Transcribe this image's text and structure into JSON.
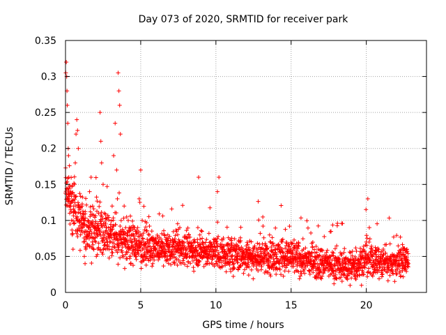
{
  "chart_data": {
    "type": "scatter",
    "title": "Day 073 of 2020, SRMTID for receiver park",
    "xlabel": "GPS time / hours",
    "ylabel": "SRMTID / TECUs",
    "xlim": [
      0,
      24
    ],
    "ylim": [
      0,
      0.35
    ],
    "x_ticks": [
      "0",
      "5",
      "10",
      "15",
      "20"
    ],
    "y_ticks": [
      "0",
      "0.05",
      "0.1",
      "0.15",
      "0.2",
      "0.25",
      "0.3",
      "0.35"
    ],
    "grid": true,
    "marker": "+",
    "color": "#ff0000",
    "series": [
      {
        "name": "SRMTID",
        "points": [
          [
            0.02,
            0.305
          ],
          [
            0.05,
            0.32
          ],
          [
            0.08,
            0.3
          ],
          [
            0.1,
            0.28
          ],
          [
            0.12,
            0.26
          ],
          [
            0.15,
            0.235
          ],
          [
            0.18,
            0.2
          ],
          [
            0.2,
            0.19
          ],
          [
            0.22,
            0.16
          ],
          [
            0.25,
            0.13
          ],
          [
            0.28,
            0.11
          ],
          [
            0.3,
            0.095
          ],
          [
            0.35,
            0.12
          ],
          [
            0.4,
            0.1
          ],
          [
            0.45,
            0.08
          ],
          [
            0.5,
            0.06
          ],
          [
            0.55,
            0.12
          ],
          [
            0.6,
            0.15
          ],
          [
            0.65,
            0.18
          ],
          [
            0.7,
            0.22
          ],
          [
            0.75,
            0.24
          ],
          [
            0.8,
            0.225
          ],
          [
            0.85,
            0.2
          ],
          [
            0.9,
            0.12
          ],
          [
            0.95,
            0.1
          ],
          [
            1.0,
            0.08
          ],
          [
            1.05,
            0.1
          ],
          [
            1.1,
            0.12
          ],
          [
            1.15,
            0.09
          ],
          [
            1.2,
            0.07
          ],
          [
            1.25,
            0.05
          ],
          [
            1.3,
            0.04
          ],
          [
            1.35,
            0.06
          ],
          [
            1.4,
            0.08
          ],
          [
            1.5,
            0.1
          ],
          [
            1.6,
            0.14
          ],
          [
            1.7,
            0.16
          ],
          [
            1.8,
            0.12
          ],
          [
            1.9,
            0.09
          ],
          [
            2.0,
            0.07
          ],
          [
            2.05,
            0.05
          ],
          [
            2.1,
            0.08
          ],
          [
            2.2,
            0.11
          ],
          [
            2.3,
            0.25
          ],
          [
            2.35,
            0.21
          ],
          [
            2.4,
            0.18
          ],
          [
            2.5,
            0.15
          ],
          [
            2.6,
            0.11
          ],
          [
            2.7,
            0.09
          ],
          [
            2.8,
            0.07
          ],
          [
            2.9,
            0.06
          ],
          [
            3.0,
            0.08
          ],
          [
            3.1,
            0.12
          ],
          [
            3.2,
            0.19
          ],
          [
            3.3,
            0.235
          ],
          [
            3.4,
            0.17
          ],
          [
            3.45,
            0.13
          ],
          [
            3.5,
            0.305
          ],
          [
            3.55,
            0.28
          ],
          [
            3.6,
            0.26
          ],
          [
            3.65,
            0.22
          ],
          [
            3.7,
            0.1
          ],
          [
            3.8,
            0.08
          ],
          [
            3.9,
            0.12
          ],
          [
            4.0,
            0.09
          ],
          [
            4.1,
            0.07
          ],
          [
            4.2,
            0.06
          ],
          [
            4.3,
            0.05
          ],
          [
            4.4,
            0.07
          ],
          [
            4.5,
            0.08
          ],
          [
            4.6,
            0.06
          ],
          [
            4.7,
            0.05
          ],
          [
            4.8,
            0.09
          ],
          [
            4.9,
            0.13
          ],
          [
            5.0,
            0.17
          ],
          [
            5.1,
            0.1
          ],
          [
            5.2,
            0.07
          ],
          [
            5.4,
            0.06
          ],
          [
            5.6,
            0.05
          ],
          [
            5.8,
            0.04
          ],
          [
            6.0,
            0.06
          ],
          [
            6.2,
            0.05
          ],
          [
            6.4,
            0.07
          ],
          [
            6.6,
            0.06
          ],
          [
            6.8,
            0.08
          ],
          [
            7.0,
            0.05
          ],
          [
            7.2,
            0.07
          ],
          [
            7.4,
            0.06
          ],
          [
            7.6,
            0.09
          ],
          [
            7.8,
            0.07
          ],
          [
            8.0,
            0.06
          ],
          [
            8.2,
            0.08
          ],
          [
            8.4,
            0.05
          ],
          [
            8.6,
            0.07
          ],
          [
            8.8,
            0.09
          ],
          [
            8.85,
            0.16
          ],
          [
            9.0,
            0.06
          ],
          [
            9.2,
            0.05
          ],
          [
            9.4,
            0.04
          ],
          [
            9.6,
            0.06
          ],
          [
            9.8,
            0.05
          ],
          [
            10.0,
            0.07
          ],
          [
            10.1,
            0.14
          ],
          [
            10.2,
            0.16
          ],
          [
            10.4,
            0.06
          ],
          [
            10.6,
            0.05
          ],
          [
            10.8,
            0.04
          ],
          [
            11.0,
            0.05
          ],
          [
            11.2,
            0.06
          ],
          [
            11.4,
            0.05
          ],
          [
            11.6,
            0.07
          ],
          [
            11.8,
            0.04
          ],
          [
            12.0,
            0.05
          ],
          [
            12.2,
            0.06
          ],
          [
            12.4,
            0.04
          ],
          [
            12.6,
            0.05
          ],
          [
            12.8,
            0.03
          ],
          [
            13.0,
            0.05
          ],
          [
            13.2,
            0.04
          ],
          [
            13.4,
            0.06
          ],
          [
            13.6,
            0.05
          ],
          [
            13.8,
            0.04
          ],
          [
            14.0,
            0.05
          ],
          [
            14.2,
            0.06
          ],
          [
            14.4,
            0.07
          ],
          [
            14.6,
            0.05
          ],
          [
            14.8,
            0.06
          ],
          [
            15.0,
            0.04
          ],
          [
            15.2,
            0.05
          ],
          [
            15.4,
            0.03
          ],
          [
            15.6,
            0.04
          ],
          [
            15.8,
            0.05
          ],
          [
            16.0,
            0.04
          ],
          [
            16.2,
            0.03
          ],
          [
            16.4,
            0.05
          ],
          [
            16.6,
            0.04
          ],
          [
            16.8,
            0.06
          ],
          [
            17.0,
            0.04
          ],
          [
            17.2,
            0.03
          ],
          [
            17.4,
            0.05
          ],
          [
            17.6,
            0.04
          ],
          [
            17.8,
            0.03
          ],
          [
            18.0,
            0.04
          ],
          [
            18.2,
            0.02
          ],
          [
            18.4,
            0.03
          ],
          [
            18.6,
            0.04
          ],
          [
            18.8,
            0.03
          ],
          [
            19.0,
            0.02
          ],
          [
            19.2,
            0.04
          ],
          [
            19.4,
            0.03
          ],
          [
            19.6,
            0.05
          ],
          [
            19.8,
            0.06
          ],
          [
            20.0,
            0.07
          ],
          [
            20.1,
            0.13
          ],
          [
            20.2,
            0.09
          ],
          [
            20.4,
            0.05
          ],
          [
            20.6,
            0.04
          ],
          [
            20.8,
            0.05
          ],
          [
            21.0,
            0.03
          ],
          [
            21.2,
            0.04
          ],
          [
            21.4,
            0.05
          ],
          [
            21.6,
            0.03
          ],
          [
            21.8,
            0.04
          ],
          [
            22.0,
            0.05
          ],
          [
            22.2,
            0.04
          ],
          [
            22.4,
            0.03
          ],
          [
            22.6,
            0.05
          ],
          [
            22.7,
            0.06
          ],
          [
            22.8,
            0.04
          ]
        ],
        "trend": [
          [
            0.0,
            0.15
          ],
          [
            0.5,
            0.12
          ],
          [
            1.0,
            0.1
          ],
          [
            1.5,
            0.09
          ],
          [
            2.0,
            0.085
          ],
          [
            3.0,
            0.08
          ],
          [
            4.0,
            0.07
          ],
          [
            5.0,
            0.065
          ],
          [
            6.0,
            0.06
          ],
          [
            7.0,
            0.06
          ],
          [
            8.0,
            0.06
          ],
          [
            9.0,
            0.058
          ],
          [
            10.0,
            0.055
          ],
          [
            11.0,
            0.052
          ],
          [
            12.0,
            0.05
          ],
          [
            13.0,
            0.05
          ],
          [
            14.0,
            0.05
          ],
          [
            15.0,
            0.048
          ],
          [
            16.0,
            0.045
          ],
          [
            17.0,
            0.042
          ],
          [
            18.0,
            0.038
          ],
          [
            19.0,
            0.035
          ],
          [
            20.0,
            0.045
          ],
          [
            21.0,
            0.042
          ],
          [
            22.0,
            0.042
          ],
          [
            22.8,
            0.045
          ]
        ],
        "spread": [
          [
            0.0,
            0.04
          ],
          [
            2.0,
            0.035
          ],
          [
            4.0,
            0.03
          ],
          [
            6.0,
            0.022
          ],
          [
            10.0,
            0.022
          ],
          [
            14.0,
            0.025
          ],
          [
            18.0,
            0.02
          ],
          [
            20.0,
            0.025
          ],
          [
            22.8,
            0.02
          ]
        ]
      }
    ]
  }
}
